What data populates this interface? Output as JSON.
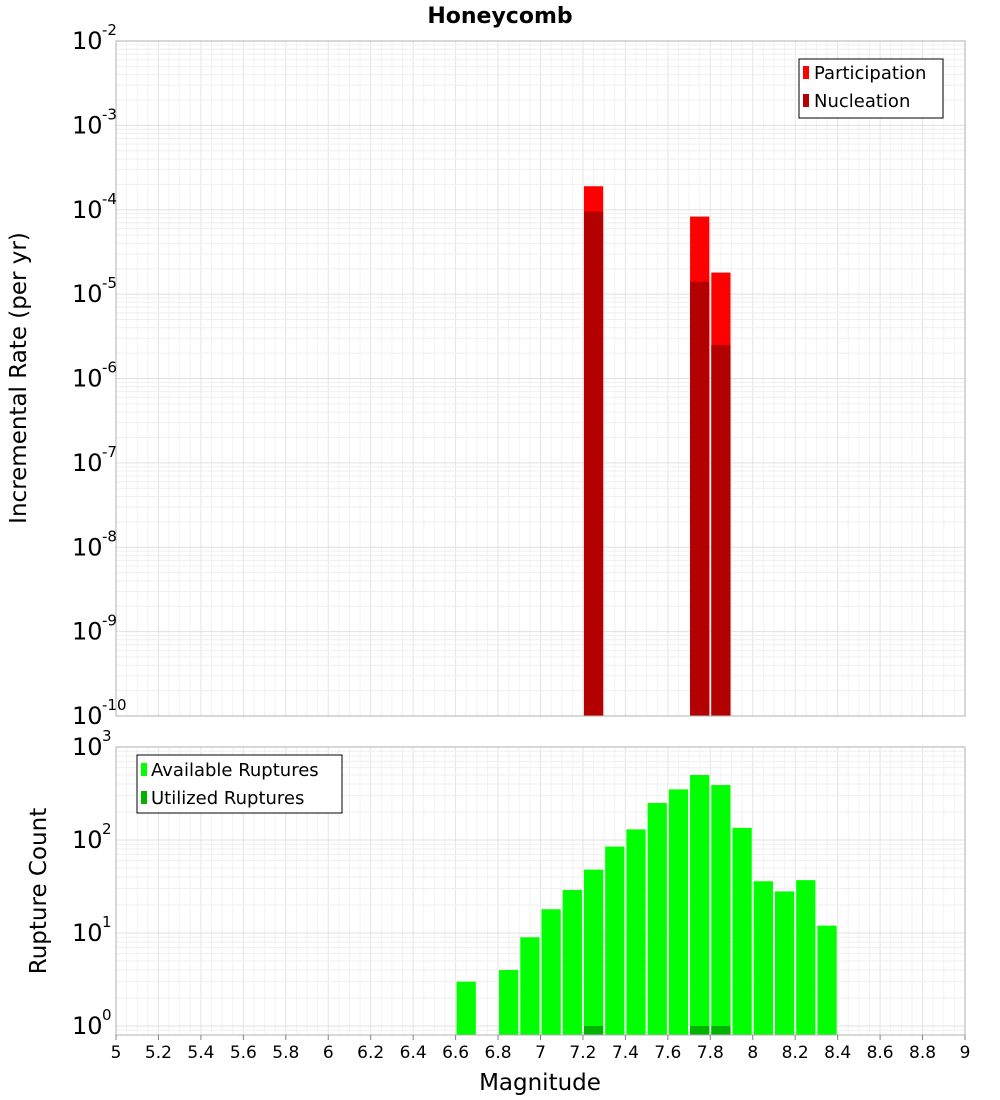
{
  "chart_data": [
    {
      "type": "bar",
      "title": "Honeycomb",
      "ylabel": "Incremental Rate (per yr)",
      "yscale": "log",
      "ylim": [
        1e-10,
        0.01
      ],
      "xlim": [
        5,
        9
      ],
      "bar_width": 0.1,
      "legend_position": "top-right",
      "series": [
        {
          "name": "Participation",
          "color": "#ff0000",
          "x": [
            7.25,
            7.75,
            7.85
          ],
          "values": [
            0.00019,
            8.3e-05,
            1.8e-05
          ]
        },
        {
          "name": "Nucleation",
          "color": "#b30000",
          "x": [
            7.25,
            7.75,
            7.85
          ],
          "values": [
            9.5e-05,
            1.4e-05,
            2.5e-06
          ]
        }
      ],
      "y_ticks": [
        {
          "base": "10",
          "exp": "-10",
          "value": 1e-10
        },
        {
          "base": "10",
          "exp": "-9",
          "value": 1e-09
        },
        {
          "base": "10",
          "exp": "-8",
          "value": 1e-08
        },
        {
          "base": "10",
          "exp": "-7",
          "value": 1e-07
        },
        {
          "base": "10",
          "exp": "-6",
          "value": 1e-06
        },
        {
          "base": "10",
          "exp": "-5",
          "value": 1e-05
        },
        {
          "base": "10",
          "exp": "-4",
          "value": 0.0001
        },
        {
          "base": "10",
          "exp": "-3",
          "value": 0.001
        },
        {
          "base": "10",
          "exp": "-2",
          "value": 0.01
        }
      ]
    },
    {
      "type": "bar",
      "ylabel": "Rupture Count",
      "xlabel": "Magnitude",
      "yscale": "log",
      "ylim": [
        0.8,
        1000
      ],
      "xlim": [
        5,
        9
      ],
      "bar_width": 0.1,
      "legend_position": "top-left",
      "series": [
        {
          "name": "Available Ruptures",
          "color": "#00ff00",
          "x": [
            6.65,
            6.85,
            6.95,
            7.05,
            7.15,
            7.25,
            7.35,
            7.45,
            7.55,
            7.65,
            7.75,
            7.85,
            7.95,
            8.05,
            8.15,
            8.25,
            8.35
          ],
          "values": [
            3,
            4,
            9,
            18,
            29,
            48,
            85,
            130,
            250,
            350,
            500,
            390,
            135,
            36,
            28,
            37,
            12
          ]
        },
        {
          "name": "Utilized Ruptures",
          "color": "#00b300",
          "x": [
            7.25,
            7.75,
            7.85
          ],
          "values": [
            1,
            1,
            1
          ]
        }
      ],
      "y_ticks": [
        {
          "base": "10",
          "exp": "0",
          "value": 1
        },
        {
          "base": "10",
          "exp": "1",
          "value": 10
        },
        {
          "base": "10",
          "exp": "2",
          "value": 100
        },
        {
          "base": "10",
          "exp": "3",
          "value": 1000
        }
      ],
      "x_ticks": [
        "5",
        "5.2",
        "5.4",
        "5.6",
        "5.8",
        "6",
        "6.2",
        "6.4",
        "6.6",
        "6.8",
        "7",
        "7.2",
        "7.4",
        "7.6",
        "7.8",
        "8",
        "8.2",
        "8.4",
        "8.6",
        "8.8",
        "9"
      ]
    }
  ],
  "colors": {
    "participation": "#ff0000",
    "nucleation": "#b30000",
    "available": "#00ff00",
    "utilized": "#00b300"
  }
}
